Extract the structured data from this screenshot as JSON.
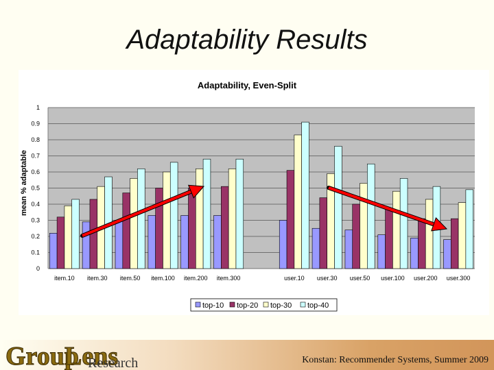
{
  "slide": {
    "title": "Adaptability Results",
    "footer": "Konstan: Recommender Systems, Summer 2009",
    "logo": {
      "text": "GroupLens",
      "suffix": "Research"
    }
  },
  "colors": {
    "top10": "#9999ff",
    "top20": "#993366",
    "top30": "#ffffcc",
    "top40": "#ccffff",
    "plot_bg": "#c0c0c0",
    "arrow": "#ff0000"
  },
  "chart_data": {
    "type": "bar",
    "title": "Adaptability, Even-Split",
    "xlabel": "",
    "ylabel": "mean % adaptable",
    "ylim": [
      0,
      1
    ],
    "yticks": [
      "0",
      "0.1",
      "0.2",
      "0.3",
      "0.4",
      "0.5",
      "0.6",
      "0.7",
      "0.8",
      "0.9",
      "1"
    ],
    "grid": true,
    "legend": "bottom",
    "categories": [
      "item.10",
      "item.30",
      "item.50",
      "item.100",
      "item.200",
      "item.300",
      "",
      "user.10",
      "user.30",
      "user.50",
      "user.100",
      "user.200",
      "user.300"
    ],
    "series": [
      {
        "name": "top-10",
        "values": [
          0.22,
          0.29,
          0.3,
          0.33,
          0.33,
          0.33,
          null,
          0.3,
          0.25,
          0.24,
          0.21,
          0.19,
          0.18
        ]
      },
      {
        "name": "top-20",
        "values": [
          0.32,
          0.43,
          0.47,
          0.5,
          0.5,
          0.51,
          null,
          0.61,
          0.44,
          0.4,
          0.37,
          0.31,
          0.31
        ]
      },
      {
        "name": "top-30",
        "values": [
          0.39,
          0.51,
          0.56,
          0.6,
          0.62,
          0.62,
          null,
          0.83,
          0.59,
          0.53,
          0.48,
          0.43,
          0.41
        ]
      },
      {
        "name": "top-40",
        "values": [
          0.43,
          0.57,
          0.62,
          0.66,
          0.68,
          0.68,
          null,
          0.91,
          0.76,
          0.65,
          0.56,
          0.51,
          0.49
        ]
      }
    ]
  }
}
